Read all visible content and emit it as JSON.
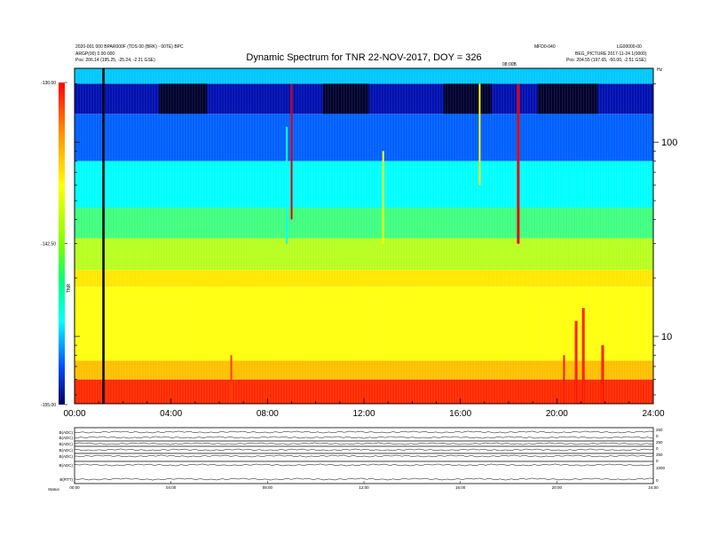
{
  "header": {
    "title": "Dynamic Spectrum for TNR 22-NOV-2017, DOY = 326",
    "left_line1": "2020-001 000 BPAR000F (TDS 00 (BRK) - 00TE) BPC",
    "left_line2": "ARGP(00) 0 00-000",
    "left_pos": "Pos:   206.14 (195.25, -25.24, -2.21 GSE)",
    "right_top_mid": "MFD0-040",
    "right_top_right": "LG00000-00",
    "right_line2": "BEG_PICTURE 2017-11-24 1(0000)",
    "right_pos": "Pos:   204.55 (197.65, -50.00, -2.51 GSE)",
    "mid_marker": "08:00B",
    "corner_right": "Hz"
  },
  "chart_data": {
    "type": "heatmap",
    "title": "Dynamic Spectrum for TNR 22-NOV-2017, DOY = 326",
    "x_ticks": [
      "00:00",
      "04:00",
      "08:00",
      "12:00",
      "16:00",
      "20:00",
      "24:00"
    ],
    "x_range_hours": [
      0,
      24
    ],
    "y_scale": "log",
    "y_ticks_right": [
      "100",
      "10"
    ],
    "y_range": [
      4.5,
      240
    ],
    "colorbar": {
      "ticks": [
        "-130.00",
        "-142.50",
        "-155.00"
      ],
      "range": [
        -155,
        -130
      ],
      "label": "TNR"
    },
    "bands": [
      {
        "from": 4.5,
        "to": 6,
        "color": "#ff2a00"
      },
      {
        "from": 6,
        "to": 7.5,
        "color": "#ffc000"
      },
      {
        "from": 7.5,
        "to": 18,
        "color": "#ffff10"
      },
      {
        "from": 18,
        "to": 22,
        "color": "#ffe800"
      },
      {
        "from": 22,
        "to": 32,
        "color": "#b8ff20"
      },
      {
        "from": 32,
        "to": 46,
        "color": "#40ff80"
      },
      {
        "from": 46,
        "to": 80,
        "color": "#00ffff"
      },
      {
        "from": 80,
        "to": 140,
        "color": "#0060ff"
      },
      {
        "from": 140,
        "to": 200,
        "color": "#0010b0"
      },
      {
        "from": 200,
        "to": 240,
        "color": "#00c8ff"
      }
    ],
    "bursts": [
      {
        "hour": 1.2,
        "f_low": 4.5,
        "f_high": 240,
        "color": "#000000",
        "width": 2.6
      },
      {
        "hour": 9.0,
        "f_low": 40,
        "f_high": 200,
        "color": "#e00000",
        "width": 2
      },
      {
        "hour": 18.4,
        "f_low": 30,
        "f_high": 200,
        "color": "#e00000",
        "width": 3
      },
      {
        "hour": 8.8,
        "f_low": 30,
        "f_high": 120,
        "color": "#00ffff",
        "width": 2
      },
      {
        "hour": 12.8,
        "f_low": 30,
        "f_high": 90,
        "color": "#ffff00",
        "width": 2
      },
      {
        "hour": 16.8,
        "f_low": 60,
        "f_high": 200,
        "color": "#ffff00",
        "width": 2
      },
      {
        "hour": 20.8,
        "f_low": 4.5,
        "f_high": 12,
        "color": "#ff1a00",
        "width": 3
      },
      {
        "hour": 21.1,
        "f_low": 4.5,
        "f_high": 14,
        "color": "#ff1a00",
        "width": 3
      },
      {
        "hour": 21.9,
        "f_low": 4.5,
        "f_high": 9,
        "color": "#ff1a00",
        "width": 3
      },
      {
        "hour": 20.3,
        "f_low": 4.5,
        "f_high": 8,
        "color": "#ff1a00",
        "width": 2
      },
      {
        "hour": 6.5,
        "f_low": 4.5,
        "f_high": 8,
        "color": "#ff3a00",
        "width": 2
      }
    ],
    "bottom_panels": {
      "rows": [
        "B(ADC)",
        "B(ADC)",
        "B(ADC)",
        "B(ADC)",
        "B(ADC)",
        "B(ADC)",
        "B(RTT)"
      ],
      "right_labels": [
        "250",
        "0",
        "250",
        "0",
        "250",
        "0",
        "1000",
        "0"
      ],
      "x_ticks": [
        "00:00",
        "04:00",
        "08:00",
        "12:00",
        "16:00",
        "20:00",
        "24:00"
      ],
      "footer_label": "Status"
    }
  }
}
